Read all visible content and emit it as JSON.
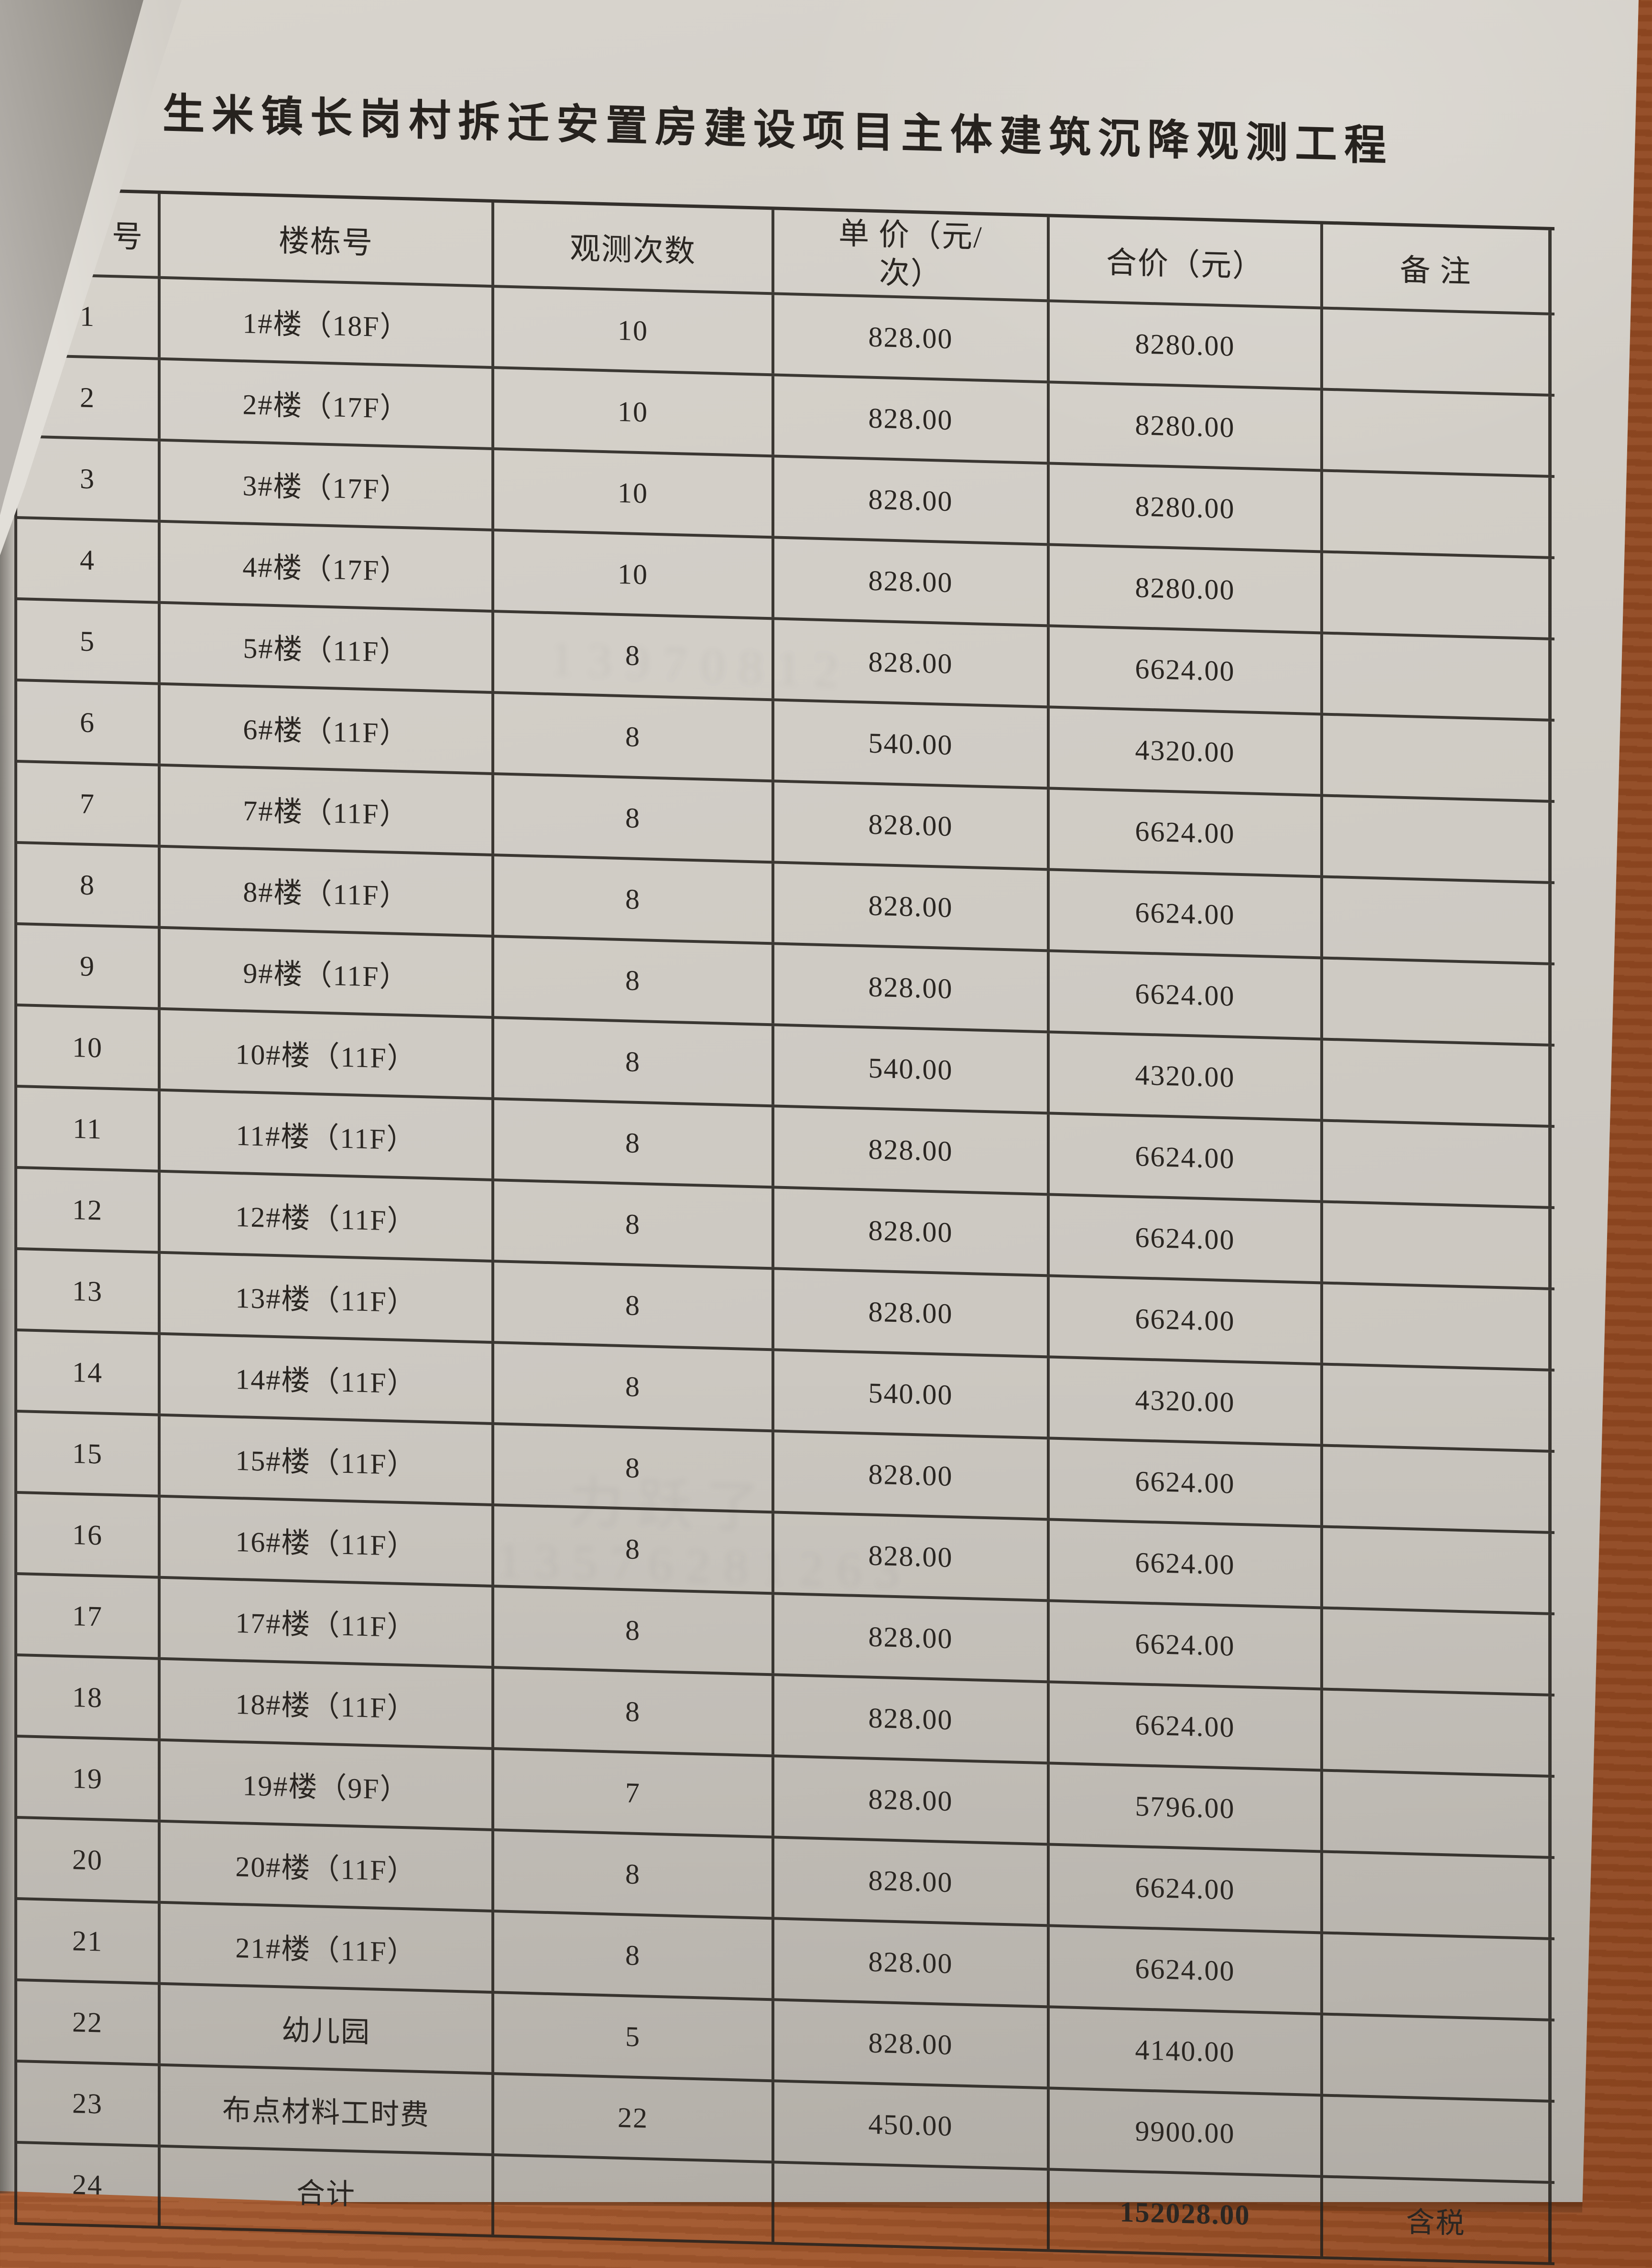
{
  "page": {
    "title": "生米镇长岗村拆迁安置房建设项目主体建筑沉降观测工程"
  },
  "table": {
    "headers": {
      "index": "号",
      "building": "楼栋号",
      "times": "观测次数",
      "unit_price": "单  价（元/\n次）",
      "total": "合价（元）",
      "remark": "备  注"
    },
    "rows": [
      {
        "no": "1",
        "building": "1#楼（18F）",
        "times": "10",
        "unit": "828.00",
        "total": "8280.00",
        "note": ""
      },
      {
        "no": "2",
        "building": "2#楼（17F）",
        "times": "10",
        "unit": "828.00",
        "total": "8280.00",
        "note": ""
      },
      {
        "no": "3",
        "building": "3#楼（17F）",
        "times": "10",
        "unit": "828.00",
        "total": "8280.00",
        "note": ""
      },
      {
        "no": "4",
        "building": "4#楼（17F）",
        "times": "10",
        "unit": "828.00",
        "total": "8280.00",
        "note": ""
      },
      {
        "no": "5",
        "building": "5#楼（11F）",
        "times": "8",
        "unit": "828.00",
        "total": "6624.00",
        "note": ""
      },
      {
        "no": "6",
        "building": "6#楼（11F）",
        "times": "8",
        "unit": "540.00",
        "total": "4320.00",
        "note": ""
      },
      {
        "no": "7",
        "building": "7#楼（11F）",
        "times": "8",
        "unit": "828.00",
        "total": "6624.00",
        "note": ""
      },
      {
        "no": "8",
        "building": "8#楼（11F）",
        "times": "8",
        "unit": "828.00",
        "total": "6624.00",
        "note": ""
      },
      {
        "no": "9",
        "building": "9#楼（11F）",
        "times": "8",
        "unit": "828.00",
        "total": "6624.00",
        "note": ""
      },
      {
        "no": "10",
        "building": "10#楼（11F）",
        "times": "8",
        "unit": "540.00",
        "total": "4320.00",
        "note": ""
      },
      {
        "no": "11",
        "building": "11#楼（11F）",
        "times": "8",
        "unit": "828.00",
        "total": "6624.00",
        "note": ""
      },
      {
        "no": "12",
        "building": "12#楼（11F）",
        "times": "8",
        "unit": "828.00",
        "total": "6624.00",
        "note": ""
      },
      {
        "no": "13",
        "building": "13#楼（11F）",
        "times": "8",
        "unit": "828.00",
        "total": "6624.00",
        "note": ""
      },
      {
        "no": "14",
        "building": "14#楼（11F）",
        "times": "8",
        "unit": "540.00",
        "total": "4320.00",
        "note": ""
      },
      {
        "no": "15",
        "building": "15#楼（11F）",
        "times": "8",
        "unit": "828.00",
        "total": "6624.00",
        "note": ""
      },
      {
        "no": "16",
        "building": "16#楼（11F）",
        "times": "8",
        "unit": "828.00",
        "total": "6624.00",
        "note": ""
      },
      {
        "no": "17",
        "building": "17#楼（11F）",
        "times": "8",
        "unit": "828.00",
        "total": "6624.00",
        "note": ""
      },
      {
        "no": "18",
        "building": "18#楼（11F）",
        "times": "8",
        "unit": "828.00",
        "total": "6624.00",
        "note": ""
      },
      {
        "no": "19",
        "building": "19#楼（9F）",
        "times": "7",
        "unit": "828.00",
        "total": "5796.00",
        "note": ""
      },
      {
        "no": "20",
        "building": "20#楼（11F）",
        "times": "8",
        "unit": "828.00",
        "total": "6624.00",
        "note": ""
      },
      {
        "no": "21",
        "building": "21#楼（11F）",
        "times": "8",
        "unit": "828.00",
        "total": "6624.00",
        "note": ""
      },
      {
        "no": "22",
        "building": "幼儿园",
        "times": "5",
        "unit": "828.00",
        "total": "4140.00",
        "note": ""
      },
      {
        "no": "23",
        "building": "布点材料工时费",
        "times": "22",
        "unit": "450.00",
        "total": "9900.00",
        "note": ""
      },
      {
        "no": "24",
        "building": "合计",
        "times": "",
        "unit": "",
        "total": "152028.00",
        "note": "含税"
      }
    ]
  },
  "bleed_through": {
    "a": "13970812",
    "b": "力跃了",
    "c": "13576281263"
  },
  "colors": {
    "wood": "#a0552b",
    "paper": "#cfcbc4",
    "table_line": "#26221e",
    "ink": "#2a2622"
  }
}
